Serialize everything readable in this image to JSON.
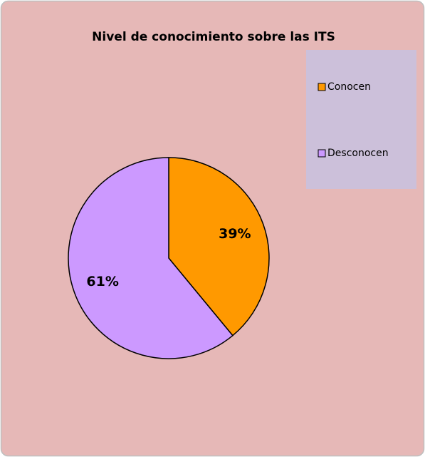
{
  "chart_data": {
    "type": "pie",
    "title": "Nivel de conocimiento sobre las ITS",
    "categories": [
      "Conocen",
      "Desconocen"
    ],
    "values": [
      39,
      61
    ],
    "value_labels": [
      "39%",
      "61%"
    ],
    "colors": [
      "#ff9900",
      "#cc99ff"
    ]
  }
}
